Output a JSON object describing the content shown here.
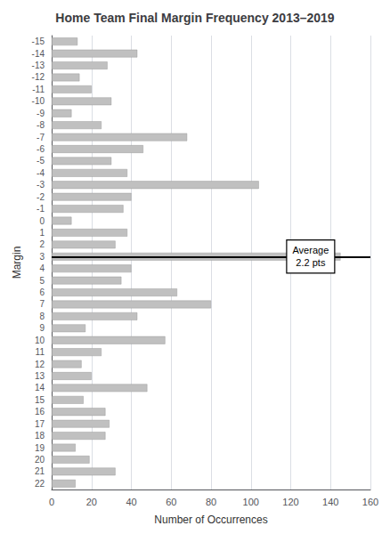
{
  "chart_data": {
    "type": "bar",
    "orientation": "horizontal",
    "title": "Home Team Final Margin Frequency 2013–2019",
    "xlabel": "Number of Occurrences",
    "ylabel": "Margin",
    "categories": [
      "-15",
      "-14",
      "-13",
      "-12",
      "-11",
      "-10",
      "-9",
      "-8",
      "-7",
      "-6",
      "-5",
      "-4",
      "-3",
      "-2",
      "-1",
      "0",
      "1",
      "2",
      "3",
      "4",
      "5",
      "6",
      "7",
      "8",
      "9",
      "10",
      "11",
      "12",
      "13",
      "14",
      "15",
      "16",
      "17",
      "18",
      "19",
      "20",
      "21",
      "22"
    ],
    "values": [
      13,
      43,
      28,
      14,
      20,
      30,
      10,
      25,
      68,
      46,
      30,
      38,
      104,
      40,
      36,
      10,
      38,
      32,
      145,
      40,
      35,
      63,
      80,
      43,
      17,
      57,
      25,
      15,
      20,
      48,
      16,
      27,
      29,
      27,
      12,
      19,
      32,
      12
    ],
    "color": "#c0c0c0",
    "xlim": [
      0,
      160
    ],
    "xticks": [
      0,
      20,
      40,
      60,
      80,
      100,
      120,
      140,
      160
    ],
    "grid": true,
    "reference_line": "3",
    "annotations": [
      {
        "text": "Average\n2.2 pts",
        "x": 130,
        "y": "3"
      }
    ]
  }
}
